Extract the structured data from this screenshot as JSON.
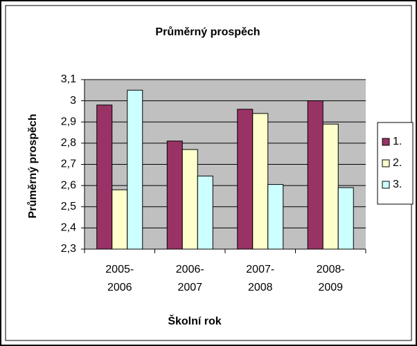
{
  "chart_data": {
    "type": "bar",
    "title": "Průměrný prospěch",
    "x_label": "Školní rok",
    "y_label": "Průměrný prospěch",
    "categories": [
      "2005-2006",
      "2006-2007",
      "2007-2008",
      "2008-2009"
    ],
    "series": [
      {
        "name": "1.",
        "color": "#993366",
        "values": [
          2.98,
          2.81,
          2.96,
          3.0
        ]
      },
      {
        "name": "2.",
        "color": "#ffffcc",
        "values": [
          2.58,
          2.77,
          2.94,
          2.89
        ]
      },
      {
        "name": "3.",
        "color": "#ccffff",
        "values": [
          3.05,
          2.645,
          2.605,
          2.59
        ]
      }
    ],
    "ylim": [
      2.3,
      3.1
    ],
    "yticks": [
      {
        "value": 2.3,
        "label": "2,3"
      },
      {
        "value": 2.4,
        "label": "2,4"
      },
      {
        "value": 2.5,
        "label": "2,5"
      },
      {
        "value": 2.6,
        "label": "2,6"
      },
      {
        "value": 2.7,
        "label": "2,7"
      },
      {
        "value": 2.8,
        "label": "2,8"
      },
      {
        "value": 2.9,
        "label": "2,9"
      },
      3,
      {
        "value": 3.1,
        "label": "3,1"
      }
    ],
    "grid": true,
    "legend": "right"
  }
}
